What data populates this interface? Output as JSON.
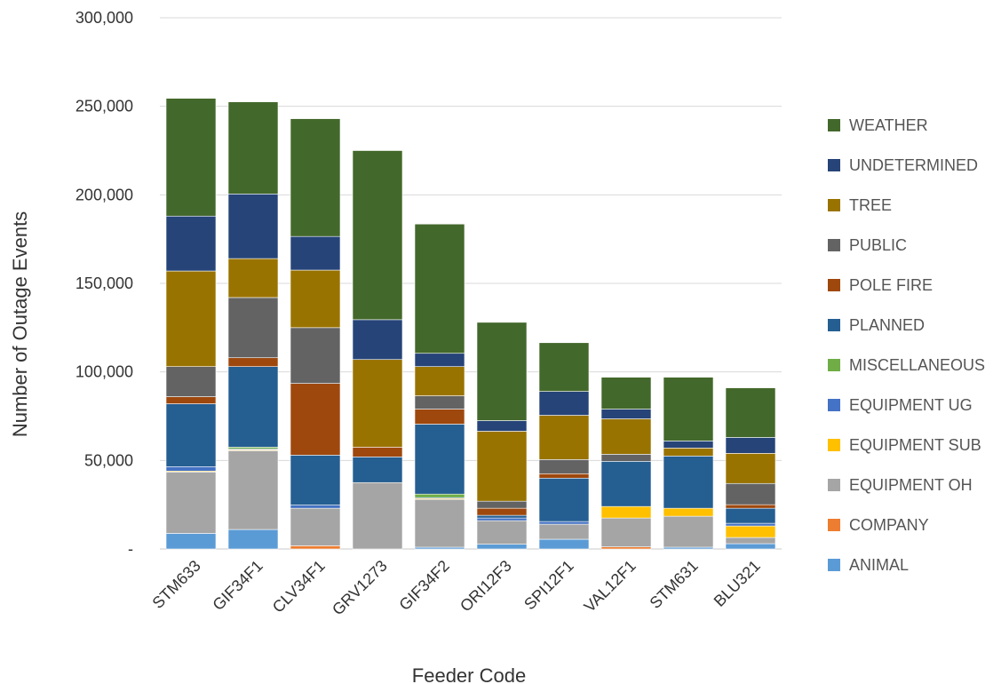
{
  "chart_data": {
    "type": "bar",
    "stacked": true,
    "xlabel": "Feeder Code",
    "ylabel": "Number of Outage Events",
    "ylim": [
      0,
      300000
    ],
    "y_ticks": [
      0,
      50000,
      100000,
      150000,
      200000,
      250000,
      300000
    ],
    "y_tick_labels": [
      "-",
      "50,000",
      "100,000",
      "150,000",
      "200,000",
      "250,000",
      "300,000"
    ],
    "grid": true,
    "legend_position": "right",
    "categories": [
      "STM633",
      "GIF34F1",
      "CLV34F1",
      "GRV1273",
      "GIF34F2",
      "ORI12F3",
      "SPI12F1",
      "VAL12F1",
      "STM631",
      "BLU321"
    ],
    "series": [
      {
        "name": "ANIMAL",
        "color": "#5B9BD5",
        "values": [
          8800,
          11000,
          0,
          0,
          1000,
          2700,
          5500,
          0,
          1000,
          3000
        ]
      },
      {
        "name": "COMPANY",
        "color": "#ED7D31",
        "values": [
          0,
          0,
          1800,
          0,
          0,
          0,
          0,
          1200,
          0,
          0
        ]
      },
      {
        "name": "EQUIPMENT OH",
        "color": "#A5A5A5",
        "values": [
          34700,
          44500,
          21200,
          37500,
          27000,
          13300,
          8500,
          16300,
          17500,
          3500
        ]
      },
      {
        "name": "EQUIPMENT SUB",
        "color": "#FFC000",
        "values": [
          500,
          500,
          0,
          0,
          500,
          0,
          0,
          6500,
          4500,
          6500
        ]
      },
      {
        "name": "EQUIPMENT UG",
        "color": "#4472C4",
        "values": [
          2500,
          500,
          1800,
          0,
          500,
          1500,
          1500,
          0,
          0,
          1500
        ]
      },
      {
        "name": "MISCELLANEOUS",
        "color": "#70AD47",
        "values": [
          0,
          1000,
          0,
          0,
          2000,
          0,
          0,
          0,
          0,
          0
        ]
      },
      {
        "name": "PLANNED",
        "color": "#255E91",
        "values": [
          35500,
          45500,
          28200,
          14500,
          39500,
          1500,
          24500,
          25500,
          29500,
          8500
        ]
      },
      {
        "name": "POLE FIRE",
        "color": "#9E480E",
        "values": [
          4000,
          5000,
          40500,
          5500,
          8500,
          4000,
          2500,
          0,
          0,
          2000
        ]
      },
      {
        "name": "PUBLIC",
        "color": "#636363",
        "values": [
          17000,
          34000,
          31500,
          0,
          7500,
          4000,
          8000,
          4000,
          0,
          12000
        ]
      },
      {
        "name": "TREE",
        "color": "#997300",
        "values": [
          54000,
          22000,
          32500,
          49500,
          16500,
          39500,
          25000,
          20000,
          4500,
          17000
        ]
      },
      {
        "name": "UNDETERMINED",
        "color": "#264478",
        "values": [
          31000,
          36500,
          19000,
          22500,
          7500,
          6000,
          13500,
          5500,
          4000,
          9000
        ]
      },
      {
        "name": "WEATHER",
        "color": "#43682B",
        "values": [
          66500,
          52000,
          66500,
          95500,
          73000,
          55500,
          27500,
          18000,
          36000,
          28000
        ]
      }
    ]
  }
}
